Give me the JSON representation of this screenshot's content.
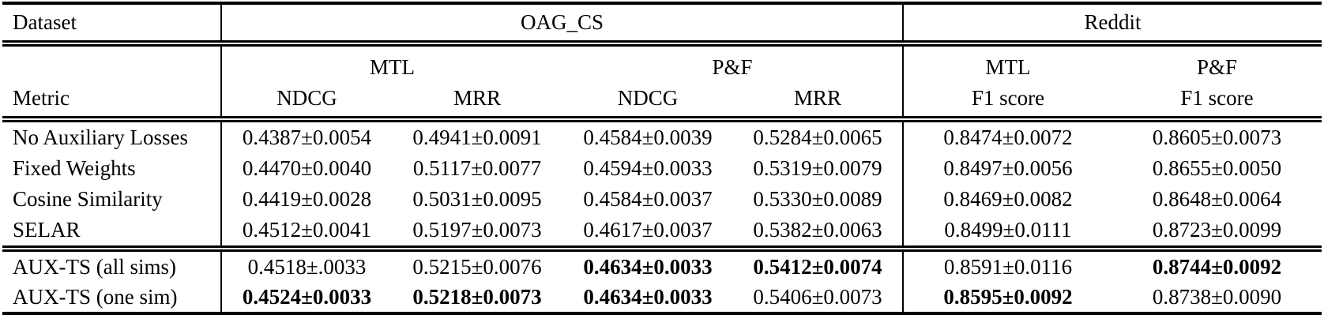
{
  "table": {
    "corner_label": "Dataset",
    "metric_label": "Metric",
    "groups": [
      {
        "label": "OAG_CS"
      },
      {
        "label": "Reddit"
      }
    ],
    "settings": [
      {
        "label": "MTL"
      },
      {
        "label": "P&F"
      },
      {
        "label": "MTL"
      },
      {
        "label": "P&F"
      }
    ],
    "metrics": [
      "NDCG",
      "MRR",
      "NDCG",
      "MRR",
      "F1 score",
      "F1 score"
    ],
    "body_rows": [
      {
        "label": "No Auxiliary Losses",
        "cells": [
          {
            "v": "0.4387±0.0054",
            "b": false
          },
          {
            "v": "0.4941±0.0091",
            "b": false
          },
          {
            "v": "0.4584±0.0039",
            "b": false
          },
          {
            "v": "0.5284±0.0065",
            "b": false
          },
          {
            "v": "0.8474±0.0072",
            "b": false
          },
          {
            "v": "0.8605±0.0073",
            "b": false
          }
        ]
      },
      {
        "label": "Fixed Weights",
        "cells": [
          {
            "v": "0.4470±0.0040",
            "b": false
          },
          {
            "v": "0.5117±0.0077",
            "b": false
          },
          {
            "v": "0.4594±0.0033",
            "b": false
          },
          {
            "v": "0.5319±0.0079",
            "b": false
          },
          {
            "v": "0.8497±0.0056",
            "b": false
          },
          {
            "v": "0.8655±0.0050",
            "b": false
          }
        ]
      },
      {
        "label": "Cosine Similarity",
        "cells": [
          {
            "v": "0.4419±0.0028",
            "b": false
          },
          {
            "v": "0.5031±0.0095",
            "b": false
          },
          {
            "v": "0.4584±0.0037",
            "b": false
          },
          {
            "v": "0.5330±0.0089",
            "b": false
          },
          {
            "v": "0.8469±0.0082",
            "b": false
          },
          {
            "v": "0.8648±0.0064",
            "b": false
          }
        ]
      },
      {
        "label": "SELAR",
        "cells": [
          {
            "v": "0.4512±0.0041",
            "b": false
          },
          {
            "v": "0.5197±0.0073",
            "b": false
          },
          {
            "v": "0.4617±0.0037",
            "b": false
          },
          {
            "v": "0.5382±0.0063",
            "b": false
          },
          {
            "v": "0.8499±0.0111",
            "b": false
          },
          {
            "v": "0.8723±0.0099",
            "b": false
          }
        ]
      }
    ],
    "highlight_rows": [
      {
        "label": "AUX-TS (all sims)",
        "cells": [
          {
            "v": "0.4518±.0033",
            "b": false
          },
          {
            "v": "0.5215±0.0076",
            "b": false
          },
          {
            "v": "0.4634±0.0033",
            "b": true
          },
          {
            "v": "0.5412±0.0074",
            "b": true
          },
          {
            "v": "0.8591±0.0116",
            "b": false
          },
          {
            "v": "0.8744±0.0092",
            "b": true
          }
        ]
      },
      {
        "label": "AUX-TS (one sim)",
        "cells": [
          {
            "v": "0.4524±0.0033",
            "b": true
          },
          {
            "v": "0.5218±0.0073",
            "b": true
          },
          {
            "v": "0.4634±0.0033",
            "b": true
          },
          {
            "v": "0.5406±0.0073",
            "b": false
          },
          {
            "v": "0.8595±0.0092",
            "b": true
          },
          {
            "v": "0.8738±0.0090",
            "b": false
          }
        ]
      }
    ]
  }
}
